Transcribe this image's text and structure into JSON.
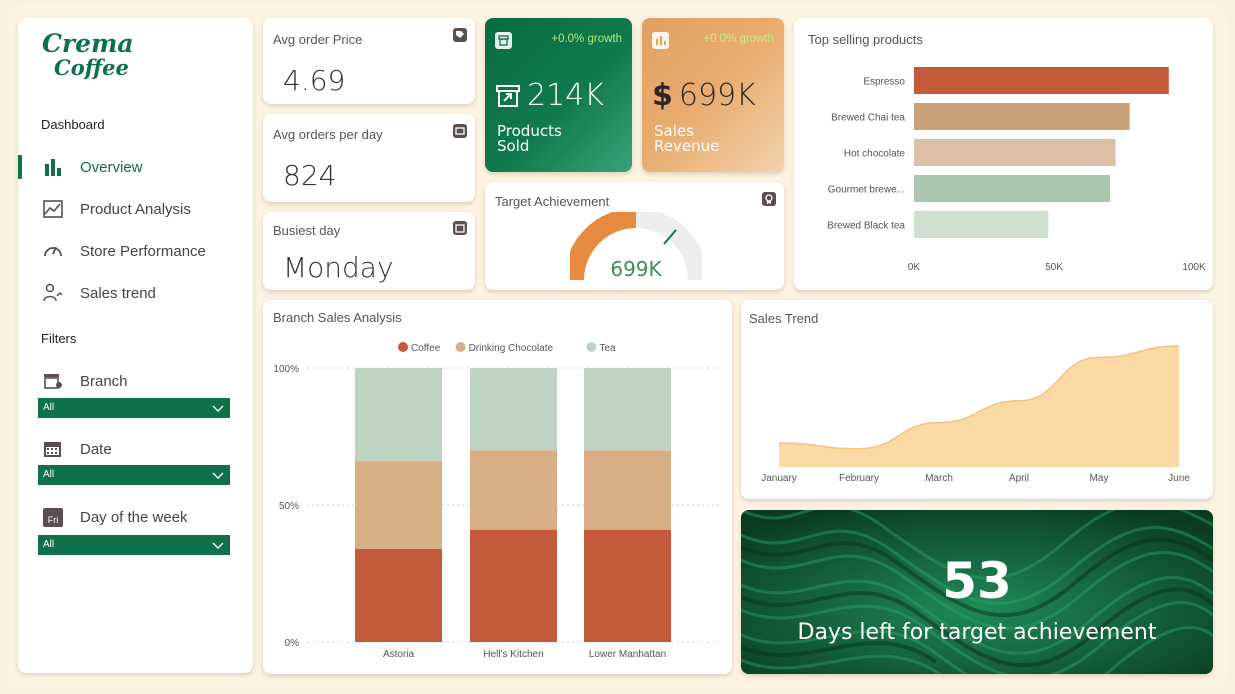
{
  "brand": {
    "line1": "Crema",
    "line2": "Coffee",
    "color": "#0e7149"
  },
  "sidebar": {
    "dashboard_heading": "Dashboard",
    "items": [
      {
        "label": "Overview",
        "icon": "bar-chart-icon",
        "active": true
      },
      {
        "label": "Product Analysis",
        "icon": "image-chart-icon"
      },
      {
        "label": "Store Performance",
        "icon": "gauge-icon"
      },
      {
        "label": "Sales trend",
        "icon": "users-trend-icon"
      }
    ],
    "filters_heading": "Filters",
    "filters": [
      {
        "label": "Branch",
        "icon": "store-icon",
        "value": "All"
      },
      {
        "label": "Date",
        "icon": "calendar-icon",
        "value": "All"
      },
      {
        "label": "Day of the week",
        "icon": "calendar-day-icon",
        "icon_text": "Fri",
        "value": "All"
      }
    ]
  },
  "kpis": {
    "avg_order_price": {
      "title": "Avg order Price",
      "value": "4.69"
    },
    "avg_orders_per_day": {
      "title": "Avg orders per day",
      "value": "824"
    },
    "busiest_day": {
      "title": "Busiest day",
      "value": "Monday"
    }
  },
  "products_sold": {
    "growth": "+0.0% growth",
    "value": "214K",
    "label_line1": "Products",
    "label_line2": "Sold"
  },
  "sales_revenue": {
    "growth": "+0.0% growth",
    "currency": "$",
    "value": "699K",
    "label_line1": "Sales",
    "label_line2": "Revenue"
  },
  "target": {
    "title": "Target Achievement",
    "value": "699K",
    "progress": 0.5
  },
  "top_products": {
    "title": "Top selling products",
    "chart_data": {
      "type": "bar",
      "orientation": "horizontal",
      "categories": [
        "Espresso",
        "Brewed Chai tea",
        "Hot chocolate",
        "Gourmet brewe...",
        "Brewed Black tea"
      ],
      "values": [
        91000,
        77000,
        72000,
        70000,
        48000
      ],
      "colors": [
        "#c25a3b",
        "#c9a078",
        "#dcc0a6",
        "#a9c6ac",
        "#cfe0d1"
      ],
      "ticks": [
        "0K",
        "50K",
        "100K"
      ],
      "xlim": [
        0,
        100000
      ]
    }
  },
  "branch_sales": {
    "title": "Branch Sales Analysis",
    "chart_data": {
      "type": "bar",
      "stacked": "percent",
      "categories": [
        "Astoria",
        "Hell's Kitchen",
        "Lower Manhattan"
      ],
      "series": [
        {
          "name": "Coffee",
          "color": "#c25a3b",
          "values": [
            34,
            41,
            41
          ]
        },
        {
          "name": "Drinking Chocolate",
          "color": "#d8ae87",
          "values": [
            32,
            29,
            29
          ]
        },
        {
          "name": "Tea",
          "color": "#bfd3c2",
          "values": [
            34,
            30,
            30
          ]
        }
      ],
      "ticks": [
        "100%",
        "50%",
        "0%"
      ],
      "ylim": [
        0,
        100
      ],
      "legend": "top"
    }
  },
  "sales_trend": {
    "title": "Sales Trend",
    "chart_data": {
      "type": "area",
      "x": [
        "January",
        "February",
        "March",
        "April",
        "May",
        "June"
      ],
      "values": [
        81,
        76,
        99,
        118,
        156,
        166
      ],
      "ylim": [
        60,
        180
      ],
      "color": "#fbd9a5"
    }
  },
  "banner": {
    "number": "53",
    "text": "Days left for target achievement"
  }
}
